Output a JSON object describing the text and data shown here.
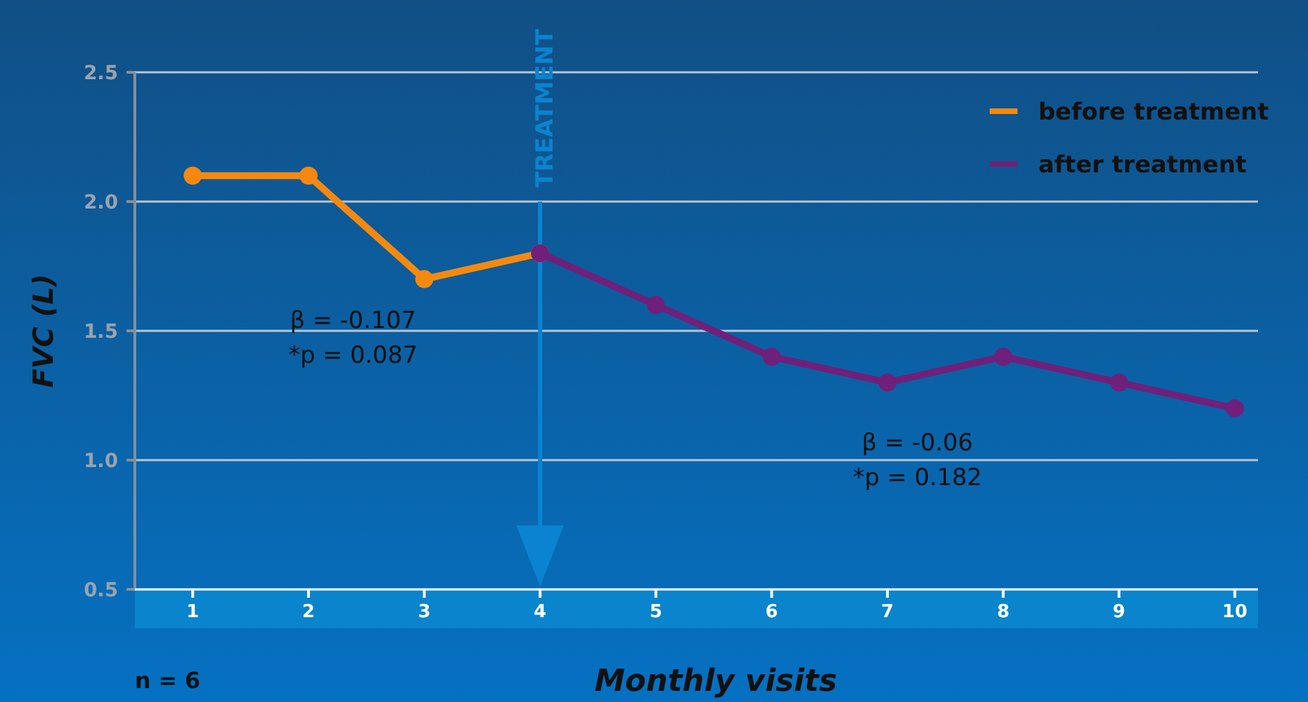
{
  "chart_data": {
    "type": "line",
    "xlabel": "Monthly visits",
    "ylabel": "FVC (L)",
    "series": [
      {
        "name": "before treatment",
        "color": "#f5890f",
        "x": [
          1,
          2,
          3,
          4
        ],
        "values": [
          2.1,
          2.1,
          1.7,
          1.8
        ]
      },
      {
        "name": "after treatment",
        "color": "#70207a",
        "x": [
          4,
          5,
          6,
          7,
          8,
          9,
          10
        ],
        "values": [
          1.8,
          1.6,
          1.4,
          1.3,
          1.4,
          1.3,
          1.2
        ]
      }
    ],
    "xlim": [
      0.5,
      10.2
    ],
    "xticks": [
      1,
      2,
      3,
      4,
      5,
      6,
      7,
      8,
      9,
      10
    ],
    "ylim": [
      0.5,
      2.5
    ],
    "yticks": [
      {
        "value": 0.5,
        "label": "0.5"
      },
      {
        "value": 1,
        "label": "1.0"
      },
      {
        "value": 1.5,
        "label": "1.5"
      },
      {
        "value": 2,
        "label": "2.0"
      },
      {
        "value": 2.5,
        "label": "2.5"
      }
    ],
    "grid": "y",
    "legend": "top right",
    "marker": "circle",
    "line_style": "solid",
    "ref_lines": [
      {
        "axis": "x",
        "value": 4,
        "label": "TREATMENT",
        "color": "#0a84d0"
      }
    ],
    "annotations": [
      "β = -0.107\n*p = 0.087",
      "β = -0.06\n*p = 0.182",
      "n = 6"
    ]
  }
}
